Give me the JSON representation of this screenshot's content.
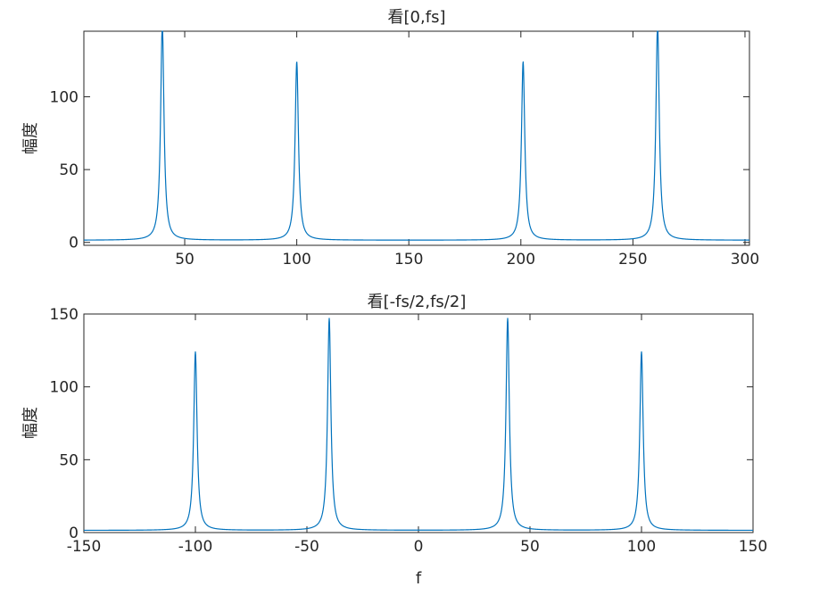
{
  "colors": {
    "series": "#0072BD",
    "axes": "#262626",
    "background": "#ffffff"
  },
  "chart_data": [
    {
      "type": "line",
      "title": "看[0,fs]",
      "xlabel": "",
      "ylabel": "幅度",
      "xlim": [
        5,
        302
      ],
      "ylim": [
        -2,
        145
      ],
      "xticks": [
        50,
        100,
        150,
        200,
        250,
        300
      ],
      "xtick_labels": [
        "50",
        "100",
        "150",
        "200",
        "250",
        "300"
      ],
      "yticks": [
        0,
        50,
        100
      ],
      "ytick_labels": [
        "0",
        "50",
        "100"
      ],
      "grid": false,
      "peaks": [
        {
          "x": 40,
          "y": 150
        },
        {
          "x": 100,
          "y": 124
        },
        {
          "x": 201,
          "y": 124
        },
        {
          "x": 261,
          "y": 150
        }
      ],
      "baseline": 1.5
    },
    {
      "type": "line",
      "title": "看[-fs/2,fs/2]",
      "xlabel": "f",
      "ylabel": "幅度",
      "xlim": [
        -150,
        150
      ],
      "ylim": [
        0,
        150
      ],
      "xticks": [
        -150,
        -100,
        -50,
        0,
        50,
        100,
        150
      ],
      "xtick_labels": [
        "-150",
        "-100",
        "-50",
        "0",
        "50",
        "100",
        "150"
      ],
      "yticks": [
        0,
        50,
        100,
        150
      ],
      "ytick_labels": [
        "0",
        "50",
        "100",
        "150"
      ],
      "grid": false,
      "peaks": [
        {
          "x": -100,
          "y": 124
        },
        {
          "x": -40,
          "y": 147
        },
        {
          "x": 40,
          "y": 147
        },
        {
          "x": 100,
          "y": 124
        }
      ],
      "baseline": 1.5
    }
  ]
}
